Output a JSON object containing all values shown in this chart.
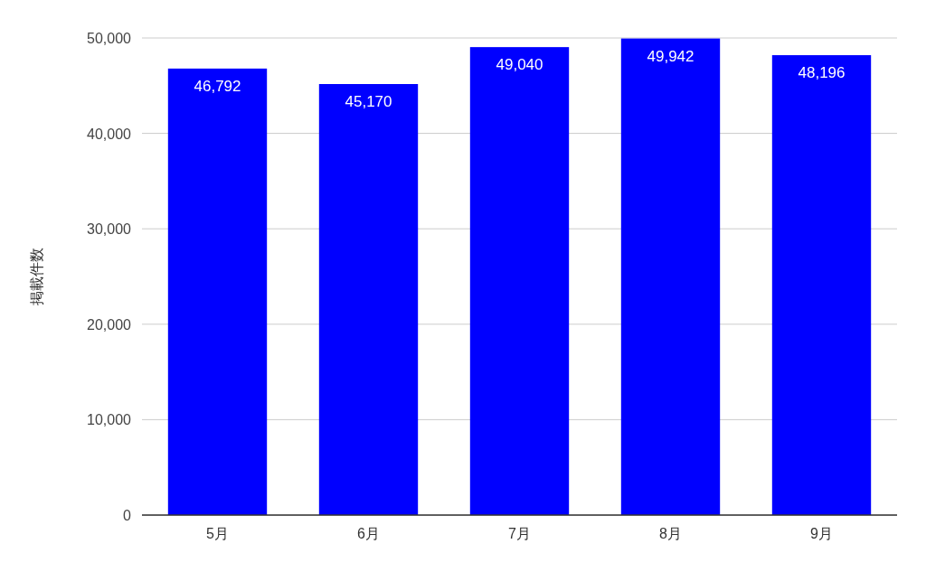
{
  "chart_data": {
    "type": "bar",
    "ylabel": "掲載件数",
    "categories": [
      "5月",
      "6月",
      "7月",
      "8月",
      "9月"
    ],
    "values": [
      46792,
      45170,
      49040,
      49942,
      48196
    ],
    "color": "#0000ff",
    "ylim": [
      0,
      50000
    ],
    "yticks": [
      0,
      {
        "value": 10000,
        "label": "10,000"
      },
      {
        "value": 20000,
        "label": "20,000"
      },
      {
        "value": 30000,
        "label": "30,000"
      },
      {
        "value": 40000,
        "label": "40,000"
      },
      {
        "value": 50000,
        "label": "50,000"
      }
    ],
    "value_labels": [
      "46,792",
      "45,170",
      "49,040",
      "49,942",
      "48,196"
    ],
    "grid": "y"
  }
}
